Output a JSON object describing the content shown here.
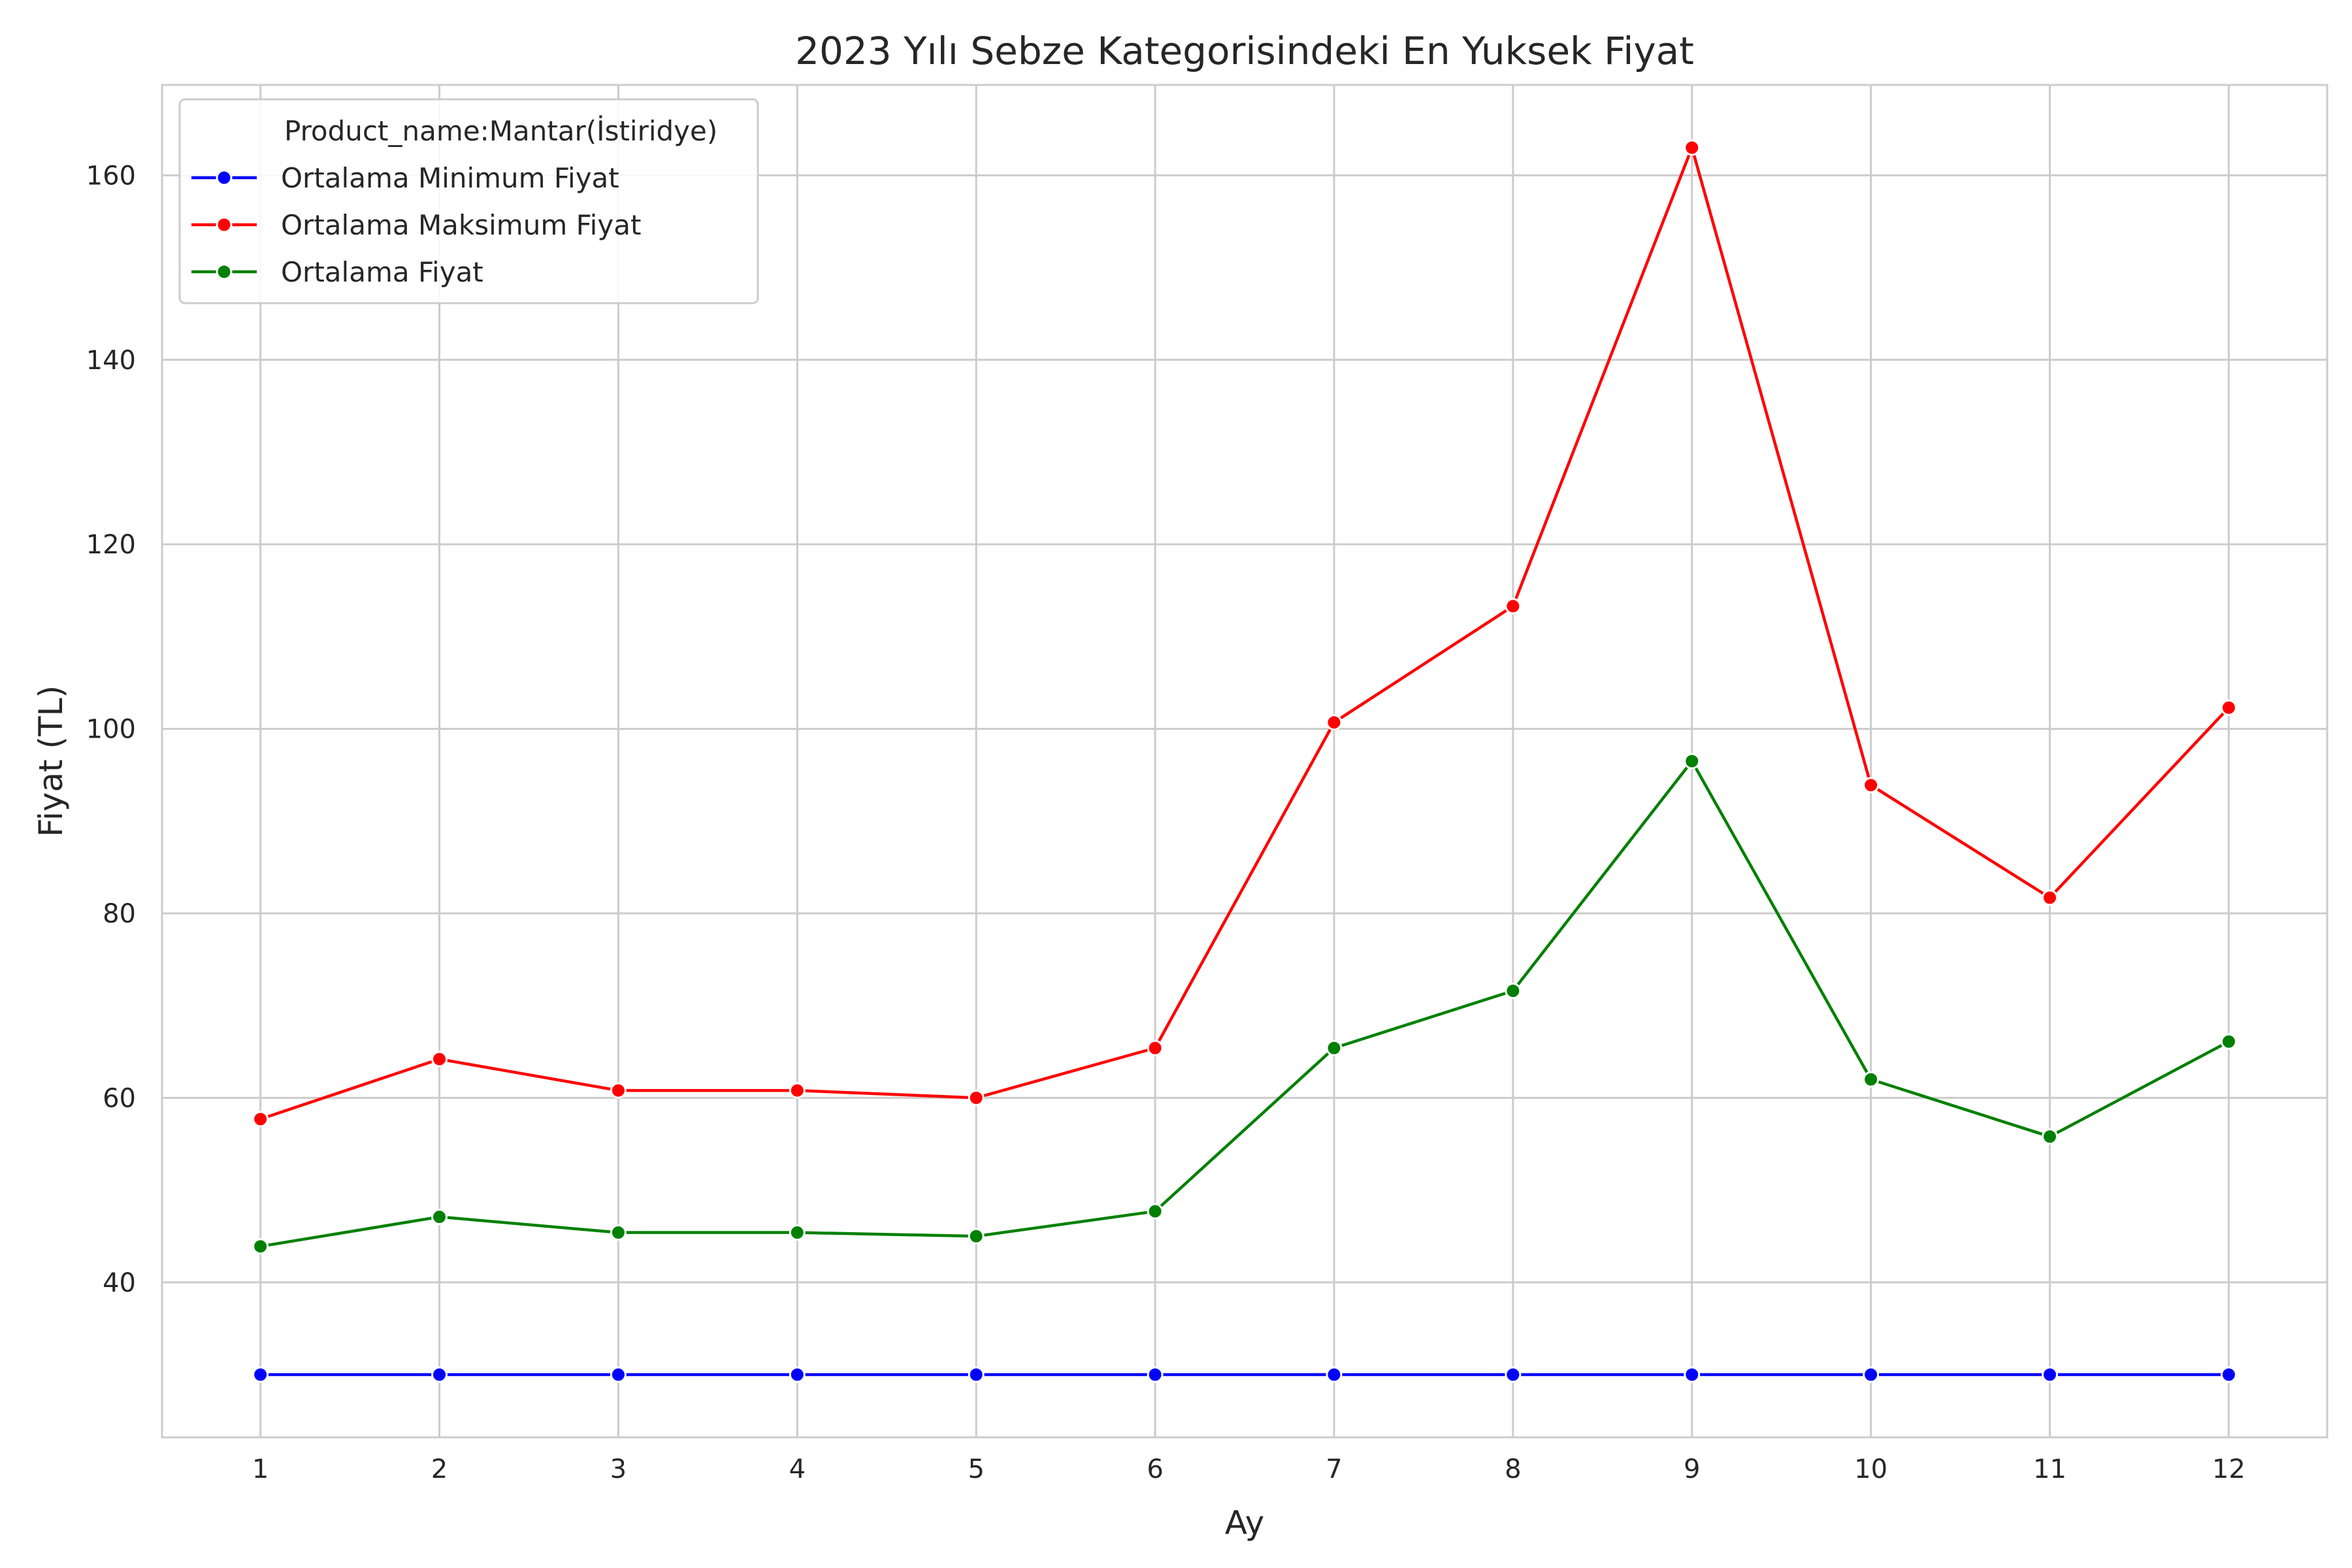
{
  "chart_data": {
    "type": "line",
    "title": "2023 Yılı Sebze Kategorisindeki En Yuksek Fiyat",
    "xlabel": "Ay",
    "ylabel": "Fiyat (TL)",
    "x": [
      1,
      2,
      3,
      4,
      5,
      6,
      7,
      8,
      9,
      10,
      11,
      12
    ],
    "xticks": [
      "1",
      "2",
      "3",
      "4",
      "5",
      "6",
      "7",
      "8",
      "9",
      "10",
      "11",
      "12"
    ],
    "xlim": [
      0.45,
      12.55
    ],
    "ylim": [
      23.2,
      169.8
    ],
    "yticks": [
      40,
      60,
      80,
      100,
      120,
      140,
      160
    ],
    "grid": true,
    "legend": {
      "title": "Product_name:Mantar(İstiridye)",
      "placement": "upper left"
    },
    "series": [
      {
        "name": "Ortalama Minimum Fiyat",
        "color": "#0000ff",
        "values": [
          30,
          30,
          30,
          30,
          30,
          30,
          30,
          30,
          30,
          30,
          30,
          30
        ]
      },
      {
        "name": "Ortalama Maksimum Fiyat",
        "color": "#ff0000",
        "values": [
          57.7,
          64.2,
          60.8,
          60.8,
          60.0,
          65.4,
          100.7,
          113.3,
          163.0,
          93.9,
          81.7,
          102.3
        ]
      },
      {
        "name": "Ortalama Fiyat",
        "color": "#008000",
        "values": [
          43.9,
          47.1,
          45.4,
          45.4,
          45.0,
          47.7,
          65.4,
          71.6,
          96.5,
          62.0,
          55.8,
          66.1
        ]
      }
    ]
  }
}
